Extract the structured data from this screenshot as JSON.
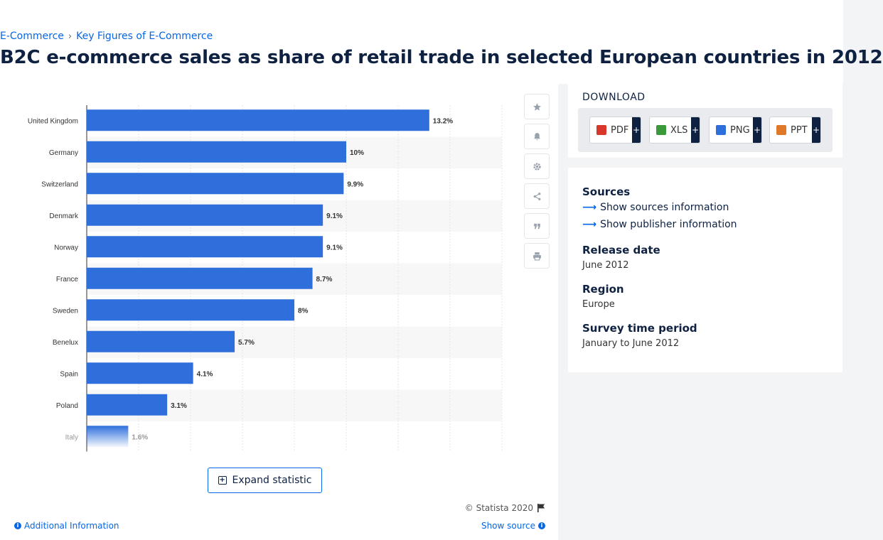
{
  "breadcrumb": {
    "item1": "E-Commerce",
    "sep": "›",
    "item2": "Key Figures of E-Commerce"
  },
  "page_title": "B2C e-commerce sales as share of retail trade in selected European countries in 2012",
  "chart_data": {
    "type": "bar",
    "orientation": "horizontal",
    "categories": [
      "United Kingdom",
      "Germany",
      "Switzerland",
      "Denmark",
      "Norway",
      "France",
      "Sweden",
      "Benelux",
      "Spain",
      "Poland",
      "Italy"
    ],
    "values": [
      13.2,
      10,
      9.9,
      9.1,
      9.1,
      8.7,
      8,
      5.7,
      4.1,
      3.1,
      1.6
    ],
    "value_labels": [
      "13.2%",
      "10%",
      "9.9%",
      "9.1%",
      "9.1%",
      "8.7%",
      "8%",
      "5.7%",
      "4.1%",
      "3.1%",
      "1.6%"
    ],
    "xlim": [
      0,
      16
    ],
    "grid": true,
    "bar_color": "#2f6fdc",
    "band_color": "#f7f7f7"
  },
  "toolbar": {
    "icons": [
      "star-icon",
      "bell-icon",
      "gear-icon",
      "share-icon",
      "quote-icon",
      "print-icon"
    ]
  },
  "expand": {
    "label": "Expand statistic"
  },
  "footer": {
    "copyright": "© Statista 2020",
    "additional_info": "Additional Information",
    "show_source": "Show source"
  },
  "download": {
    "title": "DOWNLOAD",
    "buttons": [
      {
        "label": "PDF",
        "color": "#d9372b"
      },
      {
        "label": "XLS",
        "color": "#3a9a3a"
      },
      {
        "label": "PNG",
        "color": "#2f6fdc"
      },
      {
        "label": "PPT",
        "color": "#e0782a"
      }
    ],
    "plus": "+"
  },
  "meta": {
    "sources_heading": "Sources",
    "show_sources": "Show sources information",
    "show_publisher": "Show publisher information",
    "release_heading": "Release date",
    "release_value": "June 2012",
    "region_heading": "Region",
    "region_value": "Europe",
    "survey_heading": "Survey time period",
    "survey_value": "January to June 2012"
  }
}
